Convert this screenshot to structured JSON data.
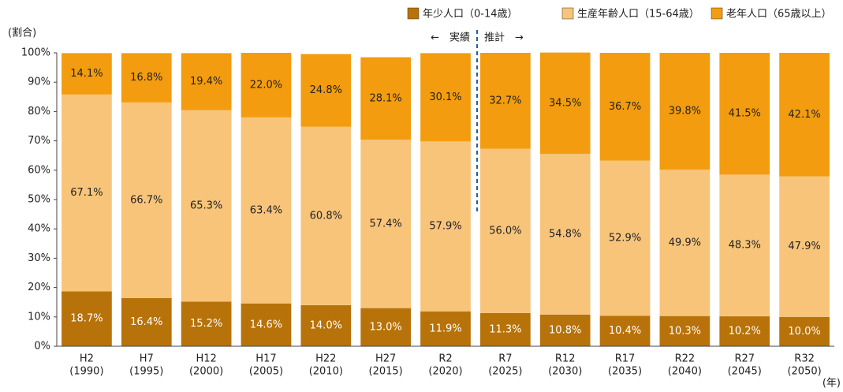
{
  "chart_data": {
    "type": "stacked_bar",
    "y_label": "(割合)",
    "x_label": "(年)",
    "annotations": [
      "←　実績",
      "推計　→"
    ],
    "categories": [
      [
        "H2",
        "(1990)"
      ],
      [
        "H7",
        "(1995)"
      ],
      [
        "H12",
        "(2000)"
      ],
      [
        "H17",
        "(2005)"
      ],
      [
        "H22",
        "(2010)"
      ],
      [
        "H27",
        "(2015)"
      ],
      [
        "R2",
        "(2020)"
      ],
      [
        "R7",
        "(2025)"
      ],
      [
        "R12",
        "(2030)"
      ],
      [
        "R17",
        "(2035)"
      ],
      [
        "R22",
        "(2040)"
      ],
      [
        "R27",
        "(2045)"
      ],
      [
        "R32",
        "(2050)"
      ]
    ],
    "series": [
      {
        "name": "年少人口（0-14歳）",
        "color": "#b8720a",
        "label_color": "#ffffff",
        "values": [
          18.7,
          16.4,
          15.2,
          14.6,
          14.0,
          13.0,
          11.9,
          11.3,
          10.8,
          10.4,
          10.3,
          10.2,
          10.0
        ],
        "value_labels": [
          "18.7%",
          "16.4%",
          "15.2%",
          "14.6%",
          "14.0%",
          "13.0%",
          "11.9%",
          "11.3%",
          "10.8%",
          "10.4%",
          "10.3%",
          "10.2%",
          "10.0%"
        ]
      },
      {
        "name": "生産年齢人口（15-64歳）",
        "color": "#f7c47a",
        "label_color": "#222222",
        "values": [
          67.1,
          66.7,
          65.3,
          63.4,
          60.8,
          57.4,
          57.9,
          56.0,
          54.8,
          52.9,
          49.9,
          48.3,
          47.9
        ],
        "value_labels": [
          "67.1%",
          "66.7%",
          "65.3%",
          "63.4%",
          "60.8%",
          "57.4%",
          "57.9%",
          "56.0%",
          "54.8%",
          "52.9%",
          "49.9%",
          "48.3%",
          "47.9%"
        ]
      },
      {
        "name": "老年人口（65歳以上）",
        "color": "#f39c0f",
        "label_color": "#222222",
        "values": [
          14.1,
          16.8,
          19.4,
          22.0,
          24.8,
          28.1,
          30.1,
          32.7,
          34.5,
          36.7,
          39.8,
          41.5,
          42.1
        ],
        "value_labels": [
          "14.1%",
          "16.8%",
          "19.4%",
          "22.0%",
          "24.8%",
          "28.1%",
          "30.1%",
          "32.7%",
          "34.5%",
          "36.7%",
          "39.8%",
          "41.5%",
          "42.1%"
        ]
      }
    ],
    "ylim": [
      0,
      100
    ],
    "yticks": [
      {
        "value": 0,
        "label": "0%"
      },
      {
        "value": 10,
        "label": "10%"
      },
      {
        "value": 20,
        "label": "20%"
      },
      {
        "value": 30,
        "label": "30%"
      },
      {
        "value": 40,
        "label": "40%"
      },
      {
        "value": 50,
        "label": "50%"
      },
      {
        "value": 60,
        "label": "60%"
      },
      {
        "value": 70,
        "label": "70%"
      },
      {
        "value": 80,
        "label": "80%"
      },
      {
        "value": 90,
        "label": "90%"
      },
      {
        "value": 100,
        "label": "100%"
      }
    ],
    "legend": "top-right"
  }
}
